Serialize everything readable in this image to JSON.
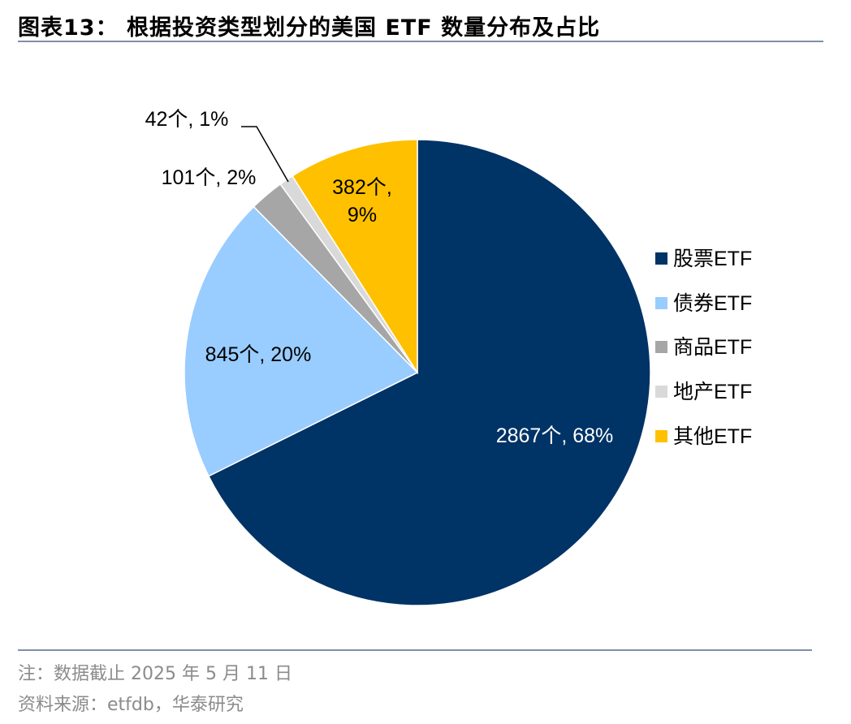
{
  "header": {
    "title": "图表13：  根据投资类型划分的美国 ETF 数量分布及占比"
  },
  "footer": {
    "note": "注：数据截止 2025 年 5 月 11 日",
    "source": "资料来源：etfdb，华泰研究"
  },
  "chart_data": {
    "type": "pie",
    "title": "根据投资类型划分的美国 ETF 数量分布及占比",
    "start_angle": "12 o'clock",
    "direction": "clockwise",
    "legend_position": "right",
    "slices": [
      {
        "name": "股票ETF",
        "legend": "股票ETF",
        "value": 2867,
        "percent": 68,
        "label": "2867个, 68%",
        "color": "#003366"
      },
      {
        "name": "债券ETF",
        "legend": "债券ETF",
        "value": 845,
        "percent": 20,
        "label": "845个, 20%",
        "color": "#99ccff"
      },
      {
        "name": "商品ETF",
        "legend": "商品ETF",
        "value": 101,
        "percent": 2,
        "label": "101个, 2%",
        "color": "#a6a6a6"
      },
      {
        "name": "地产ETF",
        "legend": "地产ETF",
        "value": 42,
        "percent": 1,
        "label": "42个, 1%",
        "color": "#d9d9d9"
      },
      {
        "name": "其他ETF",
        "legend": "其他ETF",
        "value": 382,
        "percent": 9,
        "label_line1": "382个,",
        "label_line2": "9%",
        "color": "#ffc000"
      }
    ]
  }
}
